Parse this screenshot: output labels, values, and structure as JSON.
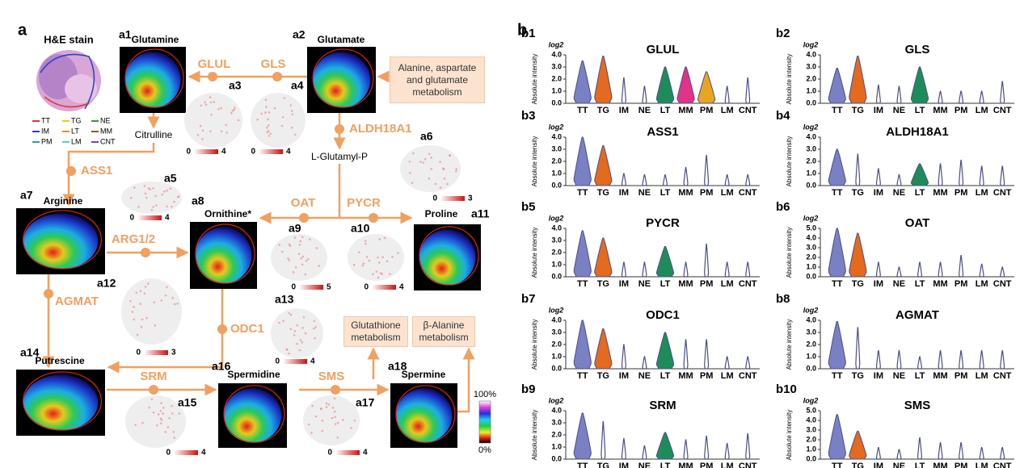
{
  "panel_a": {
    "label": "a",
    "he_stain": {
      "title": "H&E stain",
      "regions": [
        {
          "name": "TT",
          "color": "#e8302a"
        },
        {
          "name": "TG",
          "color": "#e8d000"
        },
        {
          "name": "NE",
          "color": "#2a9a3a"
        },
        {
          "name": "IM",
          "color": "#2040d0"
        },
        {
          "name": "LT",
          "color": "#f08a20"
        },
        {
          "name": "MM",
          "color": "#8a5a2a"
        },
        {
          "name": "PM",
          "color": "#20a0a0"
        },
        {
          "name": "LM",
          "color": "#60c8e0"
        },
        {
          "name": "CNT",
          "color": "#7a40b0"
        }
      ]
    },
    "metabolite_images": [
      {
        "id": "a1",
        "name": "Glutamine"
      },
      {
        "id": "a2",
        "name": "Glutamate"
      },
      {
        "id": "a7",
        "name": "Arginine"
      },
      {
        "id": "a8",
        "name": "Ornithine*"
      },
      {
        "id": "a11",
        "name": "Proline"
      },
      {
        "id": "a14",
        "name": "Putrescine"
      },
      {
        "id": "a16",
        "name": "Spermidine"
      },
      {
        "id": "a18",
        "name": "Spermine"
      }
    ],
    "enzymes": [
      {
        "name": "GLUL",
        "map": "a3",
        "scale": [
          0,
          4
        ]
      },
      {
        "name": "GLS",
        "map": "a4",
        "scale": [
          0,
          4
        ]
      },
      {
        "name": "ALDH18A1",
        "map": "a6",
        "scale": [
          0,
          3
        ]
      },
      {
        "name": "ASS1",
        "map": "a5",
        "scale": [
          0,
          4
        ]
      },
      {
        "name": "OAT",
        "map": "a9",
        "scale": [
          0,
          5
        ]
      },
      {
        "name": "PYCR",
        "map": "a10",
        "scale": [
          0,
          4
        ]
      },
      {
        "name": "ARG1/2"
      },
      {
        "name": "AGMAT",
        "map": "a12",
        "scale": [
          0,
          3
        ]
      },
      {
        "name": "ODC1",
        "map": "a13",
        "scale": [
          0,
          4
        ]
      },
      {
        "name": "SRM",
        "map": "a15",
        "scale": [
          0,
          4
        ]
      },
      {
        "name": "SMS",
        "map": "a17",
        "scale": [
          0,
          4
        ]
      }
    ],
    "intermediates": [
      "Citrulline",
      "L-Glutamyl-P"
    ],
    "pathways": [
      "Alanine, aspartate and glutamate metabolism",
      "Glutathione metabolism",
      "β-Alanine metabolism"
    ],
    "colorbar": {
      "top": "100%",
      "bottom": "0%"
    }
  },
  "panel_b": {
    "label": "b"
  },
  "chart_data": [
    {
      "type": "violin",
      "panel": "b1",
      "title": "GLUL",
      "y_label": "Absolute intensity",
      "y_unit": "log2",
      "line_color": "#4a4f8a",
      "categories": [
        "TT",
        "TG",
        "IM",
        "NE",
        "LT",
        "MM",
        "PM",
        "LM",
        "CNT"
      ],
      "values": [
        3.5,
        3.9,
        2.1,
        1.4,
        3.0,
        3.0,
        2.6,
        1.4,
        2.1
      ],
      "colors": [
        "#7b7fc4",
        "#e36a1e",
        "#4a4f8a",
        "#4a4f8a",
        "#1e8c5a",
        "#e0338a",
        "#e8a522",
        "#4a4f8a",
        "#4a4f8a"
      ],
      "ylim": [
        0,
        4
      ],
      "yticks": [
        {
          "value": 0,
          "label": "0.0"
        },
        {
          "value": 1,
          "label": "1.0"
        },
        {
          "value": 2,
          "label": "2.0"
        },
        {
          "value": 3,
          "label": "3.0"
        },
        {
          "value": 4,
          "label": "4.0"
        }
      ]
    },
    {
      "type": "violin",
      "panel": "b2",
      "title": "GLS",
      "y_label": "Absolute intensity",
      "y_unit": "log2",
      "line_color": "#4a4f8a",
      "categories": [
        "TT",
        "TG",
        "IM",
        "NE",
        "LT",
        "MM",
        "PM",
        "LM",
        "CNT"
      ],
      "values": [
        2.9,
        3.9,
        1.5,
        1.4,
        3.0,
        1.0,
        1.0,
        1.0,
        1.8
      ],
      "colors": [
        "#7b7fc4",
        "#e36a1e",
        "#4a4f8a",
        "#4a4f8a",
        "#1e8c5a",
        "#4a4f8a",
        "#4a4f8a",
        "#4a4f8a",
        "#4a4f8a"
      ],
      "ylim": [
        0,
        4
      ],
      "yticks": [
        {
          "value": 0,
          "label": "0.0"
        },
        {
          "value": 1,
          "label": "1.0"
        },
        {
          "value": 2,
          "label": "2.0"
        },
        {
          "value": 3,
          "label": "3.0"
        },
        {
          "value": 4,
          "label": "4.0"
        }
      ]
    },
    {
      "type": "violin",
      "panel": "b3",
      "title": "ASS1",
      "y_label": "Absolute intensity",
      "y_unit": "log2",
      "line_color": "#4a4f8a",
      "categories": [
        "TT",
        "TG",
        "IM",
        "NE",
        "LT",
        "MM",
        "PM",
        "LM",
        "CNT"
      ],
      "values": [
        4.0,
        3.3,
        1.0,
        0.9,
        0.9,
        1.5,
        2.5,
        0.9,
        0.9
      ],
      "colors": [
        "#7b7fc4",
        "#e36a1e",
        "#4a4f8a",
        "#4a4f8a",
        "#4a4f8a",
        "#4a4f8a",
        "#4a4f8a",
        "#4a4f8a",
        "#4a4f8a"
      ],
      "ylim": [
        0,
        4
      ],
      "yticks": [
        {
          "value": 0,
          "label": "0.0"
        },
        {
          "value": 1,
          "label": "1.0"
        },
        {
          "value": 2,
          "label": "2.0"
        },
        {
          "value": 3,
          "label": "3.0"
        },
        {
          "value": 4,
          "label": "4.0"
        }
      ]
    },
    {
      "type": "violin",
      "panel": "b4",
      "title": "ALDH18A1",
      "y_label": "Absolute intensity",
      "y_unit": "log2",
      "line_color": "#4a4f8a",
      "categories": [
        "TT",
        "TG",
        "IM",
        "NE",
        "LT",
        "MM",
        "PM",
        "LM",
        "CNT"
      ],
      "values": [
        3.0,
        2.6,
        1.4,
        0.9,
        1.8,
        1.8,
        2.1,
        1.6,
        1.6
      ],
      "colors": [
        "#7b7fc4",
        "#4a4f8a",
        "#4a4f8a",
        "#4a4f8a",
        "#1e8c5a",
        "#4a4f8a",
        "#4a4f8a",
        "#4a4f8a",
        "#4a4f8a"
      ],
      "ylim": [
        0,
        4
      ],
      "yticks": [
        {
          "value": 0,
          "label": "0.0"
        },
        {
          "value": 1,
          "label": "1.0"
        },
        {
          "value": 2,
          "label": "2.0"
        },
        {
          "value": 3,
          "label": "3.0"
        },
        {
          "value": 4,
          "label": "4.0"
        }
      ]
    },
    {
      "type": "violin",
      "panel": "b5",
      "title": "PYCR",
      "y_label": "Absolute intensity",
      "y_unit": "log2",
      "line_color": "#4a4f8a",
      "categories": [
        "TT",
        "TG",
        "IM",
        "NE",
        "LT",
        "MM",
        "PM",
        "LM",
        "CNT"
      ],
      "values": [
        3.8,
        3.2,
        1.2,
        1.2,
        2.5,
        1.2,
        2.7,
        1.2,
        1.2
      ],
      "colors": [
        "#7b7fc4",
        "#e36a1e",
        "#4a4f8a",
        "#4a4f8a",
        "#1e8c5a",
        "#4a4f8a",
        "#4a4f8a",
        "#4a4f8a",
        "#4a4f8a"
      ],
      "ylim": [
        0,
        4
      ],
      "yticks": [
        {
          "value": 0,
          "label": "0.0"
        },
        {
          "value": 1,
          "label": "1.0"
        },
        {
          "value": 2,
          "label": "2.0"
        },
        {
          "value": 3,
          "label": "3.0"
        },
        {
          "value": 4,
          "label": "4.0"
        }
      ]
    },
    {
      "type": "violin",
      "panel": "b6",
      "title": "OAT",
      "y_label": "Absolute intensity",
      "y_unit": "log2",
      "line_color": "#4a4f8a",
      "categories": [
        "TT",
        "TG",
        "IM",
        "NE",
        "LT",
        "MM",
        "PM",
        "LM",
        "CNT"
      ],
      "values": [
        5.0,
        4.5,
        1.5,
        1.0,
        1.5,
        1.5,
        2.2,
        1.3,
        1.0
      ],
      "colors": [
        "#7b7fc4",
        "#e36a1e",
        "#4a4f8a",
        "#4a4f8a",
        "#4a4f8a",
        "#4a4f8a",
        "#4a4f8a",
        "#4a4f8a",
        "#4a4f8a"
      ],
      "ylim": [
        0,
        5
      ],
      "yticks": [
        {
          "value": 0,
          "label": "0.0"
        },
        {
          "value": 1,
          "label": "1.0"
        },
        {
          "value": 2,
          "label": "2.0"
        },
        {
          "value": 3,
          "label": "3.0"
        },
        {
          "value": 4,
          "label": "4.0"
        },
        {
          "value": 5,
          "label": "5.0"
        }
      ]
    },
    {
      "type": "violin",
      "panel": "b7",
      "title": "ODC1",
      "y_label": "Absolute intensity",
      "y_unit": "log2",
      "line_color": "#4a4f8a",
      "categories": [
        "TT",
        "TG",
        "IM",
        "NE",
        "LT",
        "MM",
        "PM",
        "LM",
        "CNT"
      ],
      "values": [
        4.0,
        3.3,
        2.0,
        1.0,
        3.0,
        2.4,
        2.4,
        1.0,
        1.0
      ],
      "colors": [
        "#7b7fc4",
        "#e36a1e",
        "#4a4f8a",
        "#4a4f8a",
        "#1e8c5a",
        "#4a4f8a",
        "#4a4f8a",
        "#4a4f8a",
        "#4a4f8a"
      ],
      "ylim": [
        0,
        4
      ],
      "yticks": [
        {
          "value": 0,
          "label": "0.0"
        },
        {
          "value": 1,
          "label": "1.0"
        },
        {
          "value": 2,
          "label": "2.0"
        },
        {
          "value": 3,
          "label": "3.0"
        },
        {
          "value": 4,
          "label": "4.0"
        }
      ]
    },
    {
      "type": "violin",
      "panel": "b8",
      "title": "AGMAT",
      "y_label": "Absolute intensity",
      "y_unit": "log2",
      "line_color": "#4a4f8a",
      "categories": [
        "TT",
        "TG",
        "IM",
        "NE",
        "LT",
        "MM",
        "PM",
        "LM",
        "CNT"
      ],
      "values": [
        3.9,
        3.4,
        1.5,
        1.5,
        1.0,
        1.5,
        1.5,
        1.5,
        1.5
      ],
      "colors": [
        "#7b7fc4",
        "#4a4f8a",
        "#4a4f8a",
        "#4a4f8a",
        "#4a4f8a",
        "#4a4f8a",
        "#4a4f8a",
        "#4a4f8a",
        "#4a4f8a"
      ],
      "ylim": [
        0,
        4
      ],
      "yticks": [
        {
          "value": 0,
          "label": "0.0"
        },
        {
          "value": 1,
          "label": "1.0"
        },
        {
          "value": 2,
          "label": "2.0"
        },
        {
          "value": 3,
          "label": "3.0"
        },
        {
          "value": 4,
          "label": "4.0"
        }
      ]
    },
    {
      "type": "violin",
      "panel": "b9",
      "title": "SRM",
      "y_label": "Absolute intensity",
      "y_unit": "log2",
      "line_color": "#4a4f8a",
      "categories": [
        "TT",
        "TG",
        "IM",
        "NE",
        "LT",
        "MM",
        "PM",
        "LM",
        "CNT"
      ],
      "values": [
        3.8,
        3.1,
        1.7,
        1.1,
        2.2,
        1.6,
        1.9,
        1.3,
        2.1
      ],
      "colors": [
        "#7b7fc4",
        "#4a4f8a",
        "#4a4f8a",
        "#4a4f8a",
        "#1e8c5a",
        "#4a4f8a",
        "#4a4f8a",
        "#4a4f8a",
        "#4a4f8a"
      ],
      "ylim": [
        0,
        4
      ],
      "yticks": [
        {
          "value": 0,
          "label": "0.0"
        },
        {
          "value": 1,
          "label": "1.0"
        },
        {
          "value": 2,
          "label": "2.0"
        },
        {
          "value": 3,
          "label": "3.0"
        },
        {
          "value": 4,
          "label": "4.0"
        }
      ]
    },
    {
      "type": "violin",
      "panel": "b10",
      "title": "SMS",
      "y_label": "Absolute intensity",
      "y_unit": "log2",
      "line_color": "#4a4f8a",
      "categories": [
        "TT",
        "TG",
        "IM",
        "NE",
        "LT",
        "MM",
        "PM",
        "LM",
        "CNT"
      ],
      "values": [
        4.6,
        2.9,
        1.2,
        1.0,
        2.2,
        1.7,
        1.7,
        1.2,
        1.2
      ],
      "colors": [
        "#7b7fc4",
        "#e36a1e",
        "#4a4f8a",
        "#4a4f8a",
        "#4a4f8a",
        "#4a4f8a",
        "#4a4f8a",
        "#4a4f8a",
        "#4a4f8a"
      ],
      "ylim": [
        0,
        5
      ],
      "yticks": [
        {
          "value": 0,
          "label": "0.0"
        },
        {
          "value": 1,
          "label": "1.0"
        },
        {
          "value": 2,
          "label": "2.0"
        },
        {
          "value": 3,
          "label": "3.0"
        },
        {
          "value": 4,
          "label": "4.0"
        },
        {
          "value": 5,
          "label": "5.0"
        }
      ]
    }
  ]
}
